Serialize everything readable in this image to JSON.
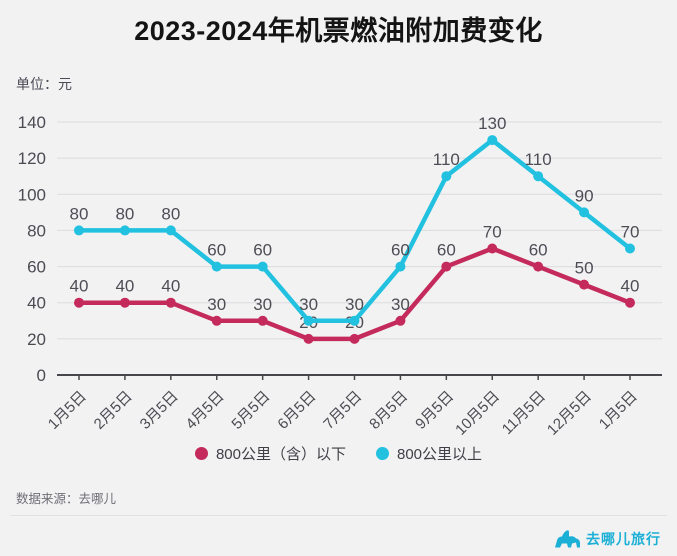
{
  "header": {
    "title": "2023-2024年机票燃油附加费变化",
    "unit_label": "单位：元"
  },
  "chart_data": {
    "type": "line",
    "title": "2023-2024年机票燃油附加费变化",
    "ylabel": "元",
    "categories": [
      "1月5日",
      "2月5日",
      "3月5日",
      "4月5日",
      "5月5日",
      "6月5日",
      "7月5日",
      "8月5日",
      "9月5日",
      "10月5日",
      "11月5日",
      "12月5日",
      "1月5日"
    ],
    "series": [
      {
        "name": "800公里（含）以下",
        "color": "#c42a5c",
        "values": [
          40,
          40,
          40,
          30,
          30,
          20,
          20,
          30,
          60,
          70,
          60,
          50,
          40
        ]
      },
      {
        "name": "800公里以上",
        "color": "#22c1e0",
        "values": [
          80,
          80,
          80,
          60,
          60,
          30,
          30,
          60,
          110,
          130,
          110,
          90,
          70
        ]
      }
    ],
    "ylim": [
      0,
      150
    ],
    "yticks": [
      0,
      20,
      40,
      60,
      80,
      100,
      120,
      140
    ],
    "grid": true,
    "legend_position": "bottom",
    "show_value_labels": true
  },
  "footer": {
    "source": "数据来源：去哪儿"
  },
  "logo": {
    "text": "去哪儿旅行",
    "color": "#1cb0d6",
    "icon": "camel-icon"
  }
}
